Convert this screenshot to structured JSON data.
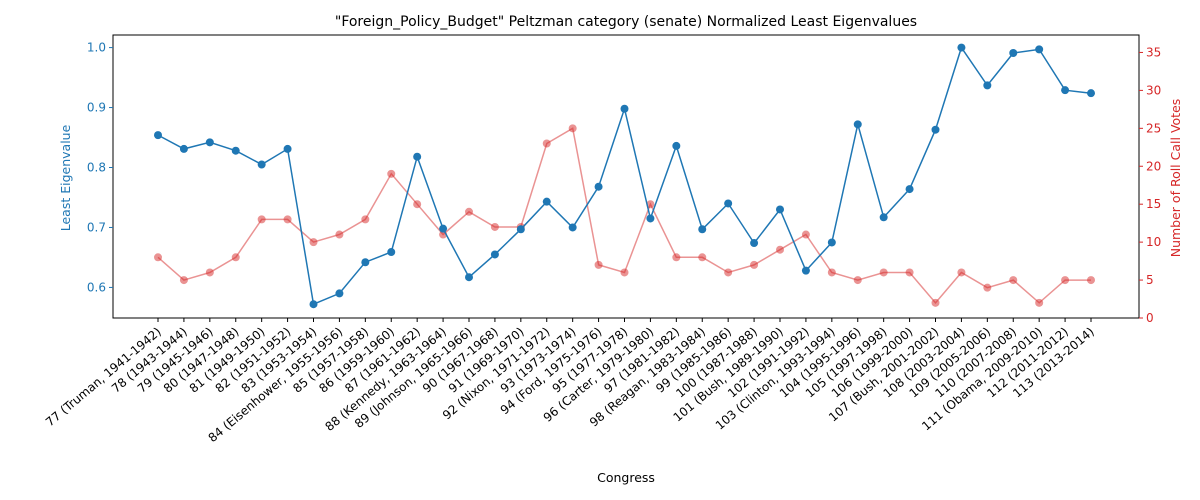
{
  "chart_data": {
    "type": "line",
    "title": "\"Foreign_Policy_Budget\" Peltzman category (senate) Normalized Least Eigenvalues",
    "xlabel": "Congress",
    "ylabel_left": "Least Eigenvalue",
    "ylabel_right": "Number of Roll Call Votes",
    "ylim_left": [
      0.549,
      1.021
    ],
    "ylim_right": [
      0,
      37.3
    ],
    "yticks_left": [
      "0.6",
      "0.7",
      "0.8",
      "0.9",
      "1.0"
    ],
    "yticks_left_values": [
      0.6,
      0.7,
      0.8,
      0.9,
      1.0
    ],
    "yticks_right": [
      "0",
      "5",
      "10",
      "15",
      "20",
      "25",
      "30",
      "35"
    ],
    "yticks_right_values": [
      0,
      5,
      10,
      15,
      20,
      25,
      30,
      35
    ],
    "categories": [
      "77 (Truman, 1941-1942)",
      "78 (1943-1944)",
      "79 (1945-1946)",
      "80 (1947-1948)",
      "81 (1949-1950)",
      "82 (1951-1952)",
      "83 (1953-1954)",
      "84 (Eisenhower, 1955-1956)",
      "85 (1957-1958)",
      "86 (1959-1960)",
      "87 (1961-1962)",
      "88 (Kennedy, 1963-1964)",
      "89 (Johnson, 1965-1966)",
      "90 (1967-1968)",
      "91 (1969-1970)",
      "92 (Nixon, 1971-1972)",
      "93 (1973-1974)",
      "94 (Ford, 1975-1976)",
      "95 (1977-1978)",
      "96 (Carter, 1979-1980)",
      "97 (1981-1982)",
      "98 (Reagan, 1983-1984)",
      "99 (1985-1986)",
      "100 (1987-1988)",
      "101 (Bush, 1989-1990)",
      "102 (1991-1992)",
      "103 (Clinton, 1993-1994)",
      "104 (1995-1996)",
      "105 (1997-1998)",
      "106 (1999-2000)",
      "107 (Bush, 2001-2002)",
      "108 (2003-2004)",
      "109 (2005-2006)",
      "110 (2007-2008)",
      "111 (Obama, 2009-2010)",
      "112 (2011-2012)",
      "113 (2013-2014)"
    ],
    "series": [
      {
        "name": "Least Eigenvalue",
        "axis": "left",
        "color": "#1f77b4",
        "values": [
          0.854,
          0.831,
          0.842,
          0.828,
          0.805,
          0.831,
          0.572,
          0.59,
          0.642,
          0.659,
          0.818,
          0.698,
          0.617,
          0.655,
          0.697,
          0.743,
          0.7,
          0.768,
          0.898,
          0.715,
          0.836,
          0.697,
          0.74,
          0.674,
          0.73,
          0.628,
          0.675,
          0.872,
          0.717,
          0.764,
          0.863,
          1.0,
          0.937,
          0.991,
          0.997,
          0.929,
          0.924
        ]
      },
      {
        "name": "Number of Roll Call Votes",
        "axis": "right",
        "color": "#d62728",
        "values": [
          8,
          5,
          6,
          8,
          13,
          13,
          10,
          11,
          13,
          19,
          15,
          11,
          14,
          12,
          12,
          23,
          25,
          7,
          6,
          15,
          8,
          8,
          6,
          7,
          9,
          11,
          6,
          5,
          6,
          6,
          2,
          6,
          4,
          5,
          2,
          5,
          5
        ]
      }
    ],
    "colors": {
      "left_axis": "#1f77b4",
      "right_axis": "#d62728"
    }
  }
}
